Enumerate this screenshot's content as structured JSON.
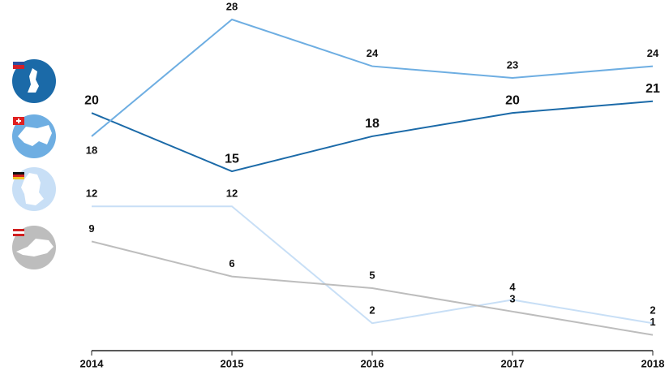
{
  "chart_data": {
    "type": "line",
    "categories": [
      "2014",
      "2015",
      "2016",
      "2017",
      "2018"
    ],
    "series": [
      {
        "color": "#1b6aa8",
        "values": [
          20,
          15,
          18,
          20,
          21
        ]
      },
      {
        "color": "#6eaee2",
        "values": [
          18,
          28,
          24,
          23,
          24
        ]
      },
      {
        "color": "#c8dff6",
        "values": [
          12,
          12,
          2,
          4,
          2
        ]
      },
      {
        "color": "#bdbdbd",
        "values": [
          9,
          6,
          5,
          3,
          1
        ]
      }
    ],
    "ylim": [
      0,
      28
    ]
  }
}
